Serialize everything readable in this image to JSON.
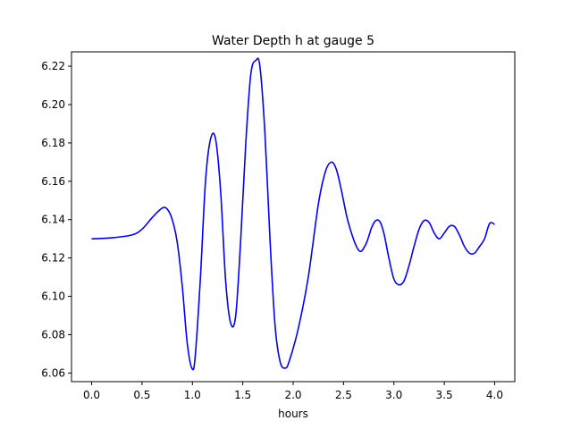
{
  "chart_data": {
    "type": "line",
    "title": "Water Depth h at gauge 5",
    "xlabel": "hours",
    "ylabel": "",
    "xlim": [
      -0.2,
      4.2
    ],
    "ylim": [
      6.0555,
      6.2275
    ],
    "xticks": [
      0.0,
      0.5,
      1.0,
      1.5,
      2.0,
      2.5,
      3.0,
      3.5,
      4.0
    ],
    "xtick_labels": [
      "0.0",
      "0.5",
      "1.0",
      "1.5",
      "2.0",
      "2.5",
      "3.0",
      "3.5",
      "4.0"
    ],
    "yticks": [
      6.06,
      6.08,
      6.1,
      6.12,
      6.14,
      6.16,
      6.18,
      6.2,
      6.22
    ],
    "ytick_labels": [
      "6.06",
      "6.08",
      "6.10",
      "6.12",
      "6.14",
      "6.16",
      "6.18",
      "6.20",
      "6.22"
    ],
    "grid": false,
    "legend": "none",
    "series": [
      {
        "color": "#0000ff",
        "x": [
          0.0,
          0.2,
          0.4,
          0.5,
          0.6,
          0.7,
          0.75,
          0.8,
          0.85,
          0.9,
          0.95,
          1.0,
          1.03,
          1.08,
          1.13,
          1.18,
          1.23,
          1.28,
          1.33,
          1.38,
          1.43,
          1.48,
          1.53,
          1.58,
          1.63,
          1.67,
          1.72,
          1.77,
          1.82,
          1.87,
          1.92,
          1.96,
          2.05,
          2.15,
          2.25,
          2.32,
          2.38,
          2.43,
          2.48,
          2.55,
          2.65,
          2.72,
          2.78,
          2.82,
          2.86,
          2.9,
          2.95,
          3.0,
          3.05,
          3.1,
          3.15,
          3.2,
          3.25,
          3.3,
          3.35,
          3.4,
          3.45,
          3.5,
          3.55,
          3.6,
          3.65,
          3.7,
          3.75,
          3.8,
          3.85,
          3.9,
          3.95,
          4.0
        ],
        "y": [
          6.13,
          6.1305,
          6.132,
          6.135,
          6.141,
          6.146,
          6.1455,
          6.14,
          6.128,
          6.105,
          6.075,
          6.062,
          6.07,
          6.11,
          6.16,
          6.182,
          6.182,
          6.155,
          6.108,
          6.086,
          6.09,
          6.13,
          6.18,
          6.216,
          6.223,
          6.22,
          6.185,
          6.13,
          6.085,
          6.066,
          6.0625,
          6.066,
          6.083,
          6.11,
          6.148,
          6.165,
          6.17,
          6.166,
          6.155,
          6.138,
          6.124,
          6.127,
          6.136,
          6.1395,
          6.139,
          6.133,
          6.12,
          6.109,
          6.106,
          6.108,
          6.116,
          6.126,
          6.135,
          6.1395,
          6.1385,
          6.133,
          6.13,
          6.133,
          6.1365,
          6.1365,
          6.132,
          6.126,
          6.1225,
          6.1225,
          6.126,
          6.13,
          6.138,
          6.1375
        ]
      }
    ]
  }
}
